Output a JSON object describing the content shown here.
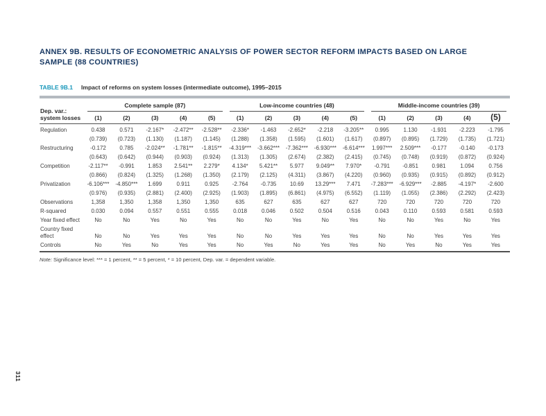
{
  "page": {
    "number": "311",
    "heading_lines": [
      "ANNEX 9B. RESULTS OF ECONOMETRIC ANALYSIS OF POWER SECTOR REFORM IMPACTS BASED ON LARGE",
      "SAMPLE (88 COUNTRIES)"
    ]
  },
  "table": {
    "label": "TABLE 9B.1",
    "caption": "Impact of reforms on system losses (intermediate outcome), 1995–2015",
    "stub_header": "Dep. var.: system losses",
    "groups": [
      {
        "label": "Complete sample (87)"
      },
      {
        "label": "Low-income countries (48)"
      },
      {
        "label": "Middle-income countries (39)"
      }
    ],
    "col_numbers": [
      "(1)",
      "(2)",
      "(3)",
      "(4)",
      "(5)"
    ],
    "rows": [
      {
        "label": "Regulation",
        "values": [
          "0.438",
          "0.571",
          "-2.167*",
          "-2.472**",
          "-2.528**",
          "-2.336*",
          "-1.463",
          "-2.652*",
          "-2.218",
          "-3.205**",
          "0.995",
          "1.130",
          "-1.931",
          "-2.223",
          "-1.795"
        ],
        "se": [
          "(0.739)",
          "(0.723)",
          "(1.130)",
          "(1.187)",
          "(1.145)",
          "(1.288)",
          "(1.358)",
          "(1.595)",
          "(1.601)",
          "(1.617)",
          "(0.897)",
          "(0.895)",
          "(1.729)",
          "(1.735)",
          "(1.721)"
        ]
      },
      {
        "label": "Restructuring",
        "values": [
          "-0.172",
          "0.785",
          "-2.024**",
          "-1.781**",
          "-1.815**",
          "-4.319***",
          "-3.662***",
          "-7.362***",
          "-6.930***",
          "-6.614***",
          "1.997***",
          "2.509***",
          "-0.177",
          "-0.140",
          "-0.173"
        ],
        "se": [
          "(0.643)",
          "(0.642)",
          "(0.944)",
          "(0.903)",
          "(0.924)",
          "(1.313)",
          "(1.305)",
          "(2.674)",
          "(2.382)",
          "(2.415)",
          "(0.745)",
          "(0.748)",
          "(0.919)",
          "(0.872)",
          "(0.924)"
        ]
      },
      {
        "label": "Competition",
        "values": [
          "-2.117**",
          "-0.991",
          "1.853",
          "2.541**",
          "2.279*",
          "4.134*",
          "5.421**",
          "5.977",
          "9.049**",
          "7.970*",
          "-0.791",
          "-0.851",
          "0.981",
          "1.094",
          "0.756"
        ],
        "se": [
          "(0.866)",
          "(0.824)",
          "(1.325)",
          "(1.268)",
          "(1.350)",
          "(2.179)",
          "(2.125)",
          "(4.311)",
          "(3.867)",
          "(4.220)",
          "(0.960)",
          "(0.935)",
          "(0.915)",
          "(0.892)",
          "(0.912)"
        ]
      },
      {
        "label": "Privatization",
        "values": [
          "-6.106***",
          "-4.850***",
          "1.699",
          "0.911",
          "0.925",
          "-2.764",
          "-0.735",
          "10.69",
          "13.29***",
          "7.471",
          "-7.283***",
          "-6.929***",
          "-2.885",
          "-4.197*",
          "-2.600"
        ],
        "se": [
          "(0.976)",
          "(0.935)",
          "(2.881)",
          "(2.400)",
          "(2.925)",
          "(1.903)",
          "(1.895)",
          "(6.861)",
          "(4.975)",
          "(6.552)",
          "(1.119)",
          "(1.055)",
          "(2.386)",
          "(2.292)",
          "(2.423)"
        ]
      },
      {
        "label": "Observations",
        "values": [
          "1,358",
          "1,350",
          "1,358",
          "1,350",
          "1,350",
          "635",
          "627",
          "635",
          "627",
          "627",
          "720",
          "720",
          "720",
          "720",
          "720"
        ]
      },
      {
        "label": "R-squared",
        "values": [
          "0.030",
          "0.094",
          "0.557",
          "0.551",
          "0.555",
          "0.018",
          "0.046",
          "0.502",
          "0.504",
          "0.516",
          "0.043",
          "0.110",
          "0.593",
          "0.581",
          "0.593"
        ]
      },
      {
        "label": "Year fixed effect",
        "values": [
          "No",
          "No",
          "Yes",
          "No",
          "Yes",
          "No",
          "No",
          "Yes",
          "No",
          "Yes",
          "No",
          "No",
          "Yes",
          "No",
          "Yes"
        ]
      },
      {
        "label": "Country fixed effect",
        "values": [
          "No",
          "No",
          "Yes",
          "Yes",
          "Yes",
          "No",
          "No",
          "Yes",
          "Yes",
          "Yes",
          "No",
          "No",
          "Yes",
          "Yes",
          "Yes"
        ]
      },
      {
        "label": "Controls",
        "values": [
          "No",
          "Yes",
          "No",
          "Yes",
          "Yes",
          "No",
          "Yes",
          "No",
          "Yes",
          "Yes",
          "No",
          "Yes",
          "No",
          "Yes",
          "Yes"
        ]
      }
    ],
    "note_prefix": "Note:",
    "note": " Significance level: *** = 1 percent, ** = 5 percent, * = 10 percent, Dep. var. = dependent variable."
  }
}
